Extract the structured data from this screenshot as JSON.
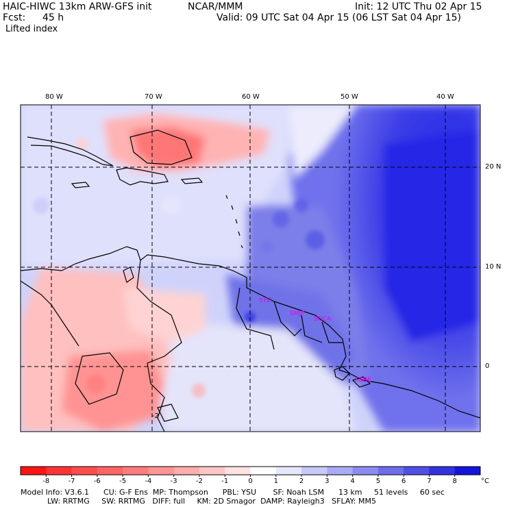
{
  "header": {
    "model": "HAIC-HIWC 13km ARW-GFS init",
    "org": "NCAR/MMM",
    "init": "Init: 12 UTC Thu 02 Apr 15",
    "fcst_label": "Fcst:",
    "fcst_value": "45 h",
    "valid": "Valid: 09 UTC Sat 04 Apr 15 (06 LST Sat 04 Apr 15)",
    "field": "Lifted index"
  },
  "map": {
    "lon_labels": [
      "80 W",
      "70 W",
      "60 W",
      "50 W",
      "40 W"
    ],
    "lat_labels": [
      "20 N",
      "10 N",
      "0"
    ],
    "stations": [
      "SYEI",
      "SMJP",
      "SOCA",
      "SBBE"
    ],
    "contour_label": "-2",
    "colors": {
      "negative": "#ff5c5c",
      "positive": "#4b4be6",
      "deep_positive": "#1e22e8",
      "land": "#000000"
    }
  },
  "colorbar": {
    "ticks": [
      "-8",
      "-7",
      "-6",
      "-5",
      "-4",
      "-3",
      "-2",
      "-1",
      "0",
      "1",
      "2",
      "3",
      "4",
      "5",
      "6",
      "7",
      "8"
    ],
    "unit": "°C",
    "colors": [
      "#ff1414",
      "#ff3333",
      "#ff4d4d",
      "#ff6464",
      "#ff7c7c",
      "#ff9494",
      "#ffacac",
      "#ffc6c6",
      "#ffe2e2",
      "#ffffff",
      "#e6e6ff",
      "#c8c8fa",
      "#aaaaf5",
      "#8c8cf0",
      "#6e6eeb",
      "#5050e6",
      "#3232e1",
      "#1414dc"
    ]
  },
  "model_info": {
    "line1": "Model Info: V3.6.1      CU: G-F Ens  MP: Thompson      PBL: YSU       SF: Noah LSM      13 km     51 levels     60 sec",
    "line2": "LW: RRTMG     SW: RRTMG   DIFF: full     KM: 2D Smagor  DAMP: Rayleigh3   SFLAY: MM5"
  }
}
